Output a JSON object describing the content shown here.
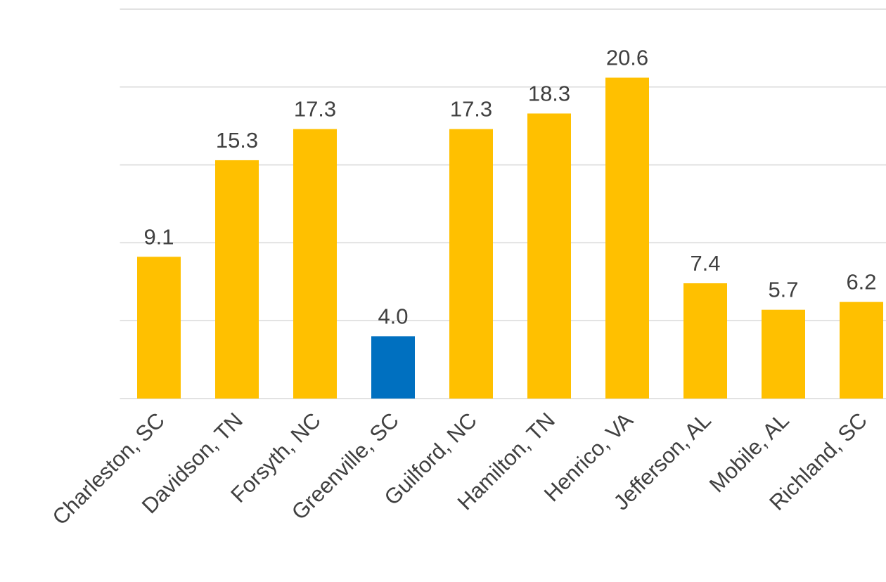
{
  "chart_data": {
    "type": "bar",
    "categories": [
      "Charleston, SC",
      "Davidson, TN",
      "Forsyth, NC",
      "Greenville, SC",
      "Guilford, NC",
      "Hamilton, TN",
      "Henrico, VA",
      "Jefferson, AL",
      "Mobile, AL",
      "Richland, SC"
    ],
    "values": [
      9.1,
      15.3,
      17.3,
      4.0,
      17.3,
      18.3,
      20.6,
      7.4,
      5.7,
      6.2
    ],
    "value_labels": [
      "9.1",
      "15.3",
      "17.3",
      "4.0",
      "17.3",
      "18.3",
      "20.6",
      "7.4",
      "5.7",
      "6.2"
    ],
    "colors": [
      "#ffc000",
      "#ffc000",
      "#ffc000",
      "#0070c0",
      "#ffc000",
      "#ffc000",
      "#ffc000",
      "#ffc000",
      "#ffc000",
      "#ffc000"
    ],
    "ylim": [
      0,
      25
    ],
    "yticks": [
      0,
      5,
      10,
      15,
      20,
      25
    ],
    "grid": true
  }
}
